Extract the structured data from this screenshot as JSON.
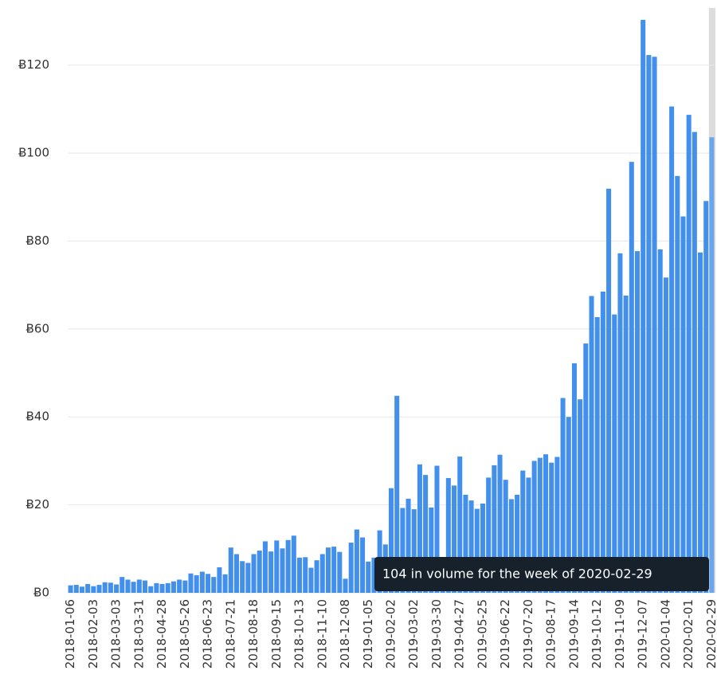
{
  "chart_data": {
    "type": "bar",
    "categories": [
      "2018-01-06",
      null,
      null,
      null,
      "2018-02-03",
      null,
      null,
      null,
      "2018-03-03",
      null,
      null,
      null,
      "2018-03-31",
      null,
      null,
      null,
      "2018-04-28",
      null,
      null,
      null,
      "2018-05-26",
      null,
      null,
      null,
      "2018-06-23",
      null,
      null,
      null,
      "2018-07-21",
      null,
      null,
      null,
      "2018-08-18",
      null,
      null,
      null,
      "2018-09-15",
      null,
      null,
      null,
      "2018-10-13",
      null,
      null,
      null,
      "2018-11-10",
      null,
      null,
      null,
      "2018-12-08",
      null,
      null,
      null,
      "2019-01-05",
      null,
      null,
      null,
      "2019-02-02",
      null,
      null,
      null,
      "2019-03-02",
      null,
      null,
      null,
      "2019-03-30",
      null,
      null,
      null,
      "2019-04-27",
      null,
      null,
      null,
      "2019-05-25",
      null,
      null,
      null,
      "2019-06-22",
      null,
      null,
      null,
      "2019-07-20",
      null,
      null,
      null,
      "2019-08-17",
      null,
      null,
      null,
      "2019-09-14",
      null,
      null,
      null,
      "2019-10-12",
      null,
      null,
      null,
      "2019-11-09",
      null,
      null,
      null,
      "2019-12-07",
      null,
      null,
      null,
      "2020-01-04",
      null,
      null,
      null,
      "2020-02-01",
      null,
      null,
      null,
      "2020-02-29"
    ],
    "values": [
      1.7,
      1.8,
      1.4,
      2.0,
      1.5,
      1.8,
      2.4,
      2.3,
      1.9,
      3.6,
      3.0,
      2.5,
      3.0,
      2.8,
      1.5,
      2.2,
      2.0,
      2.2,
      2.6,
      3.0,
      2.8,
      4.4,
      4.0,
      4.8,
      4.3,
      3.6,
      5.8,
      4.2,
      10.3,
      8.8,
      7.2,
      6.8,
      8.8,
      9.6,
      11.7,
      9.4,
      11.9,
      10.1,
      12.0,
      13.0,
      8.0,
      8.1,
      5.7,
      7.4,
      8.8,
      10.3,
      10.5,
      9.3,
      3.2,
      11.4,
      14.4,
      12.6,
      7.1,
      8.0,
      14.2,
      11.0,
      23.8,
      44.8,
      19.3,
      21.4,
      19.0,
      29.2,
      26.8,
      19.4,
      28.9,
      3,
      26.1,
      24.4,
      31.0,
      22.3,
      21.0,
      19.1,
      20.3,
      26.2,
      29.0,
      31.4,
      25.7,
      21.3,
      22.3,
      27.8,
      26.2,
      30.0,
      30.7,
      31.5,
      29.6,
      30.9,
      44.3,
      40.0,
      52.2,
      44.0,
      56.7,
      67.5,
      62.7,
      68.5,
      91.9,
      63.3,
      77.2,
      67.6,
      98.0,
      77.7,
      130.3,
      122.3,
      121.9,
      78.1,
      71.7,
      110.6,
      94.8,
      85.6,
      108.7,
      104.8,
      77.4,
      89.1,
      103.6
    ],
    "color": "#4390ec",
    "highlight_color": "#6aa6ee",
    "ylim": [
      0,
      133
    ],
    "yticks": [
      {
        "value": 0,
        "label": "Ƀ0"
      },
      {
        "value": 20,
        "label": "Ƀ20"
      },
      {
        "value": 40,
        "label": "Ƀ40"
      },
      {
        "value": 60,
        "label": "Ƀ60"
      },
      {
        "value": 80,
        "label": "Ƀ80"
      },
      {
        "value": 100,
        "label": "Ƀ100"
      },
      {
        "value": 120,
        "label": "Ƀ120"
      }
    ],
    "grid": true,
    "tooltip": {
      "text": "104 in volume for the week of 2020-02-29",
      "index": 112
    }
  }
}
